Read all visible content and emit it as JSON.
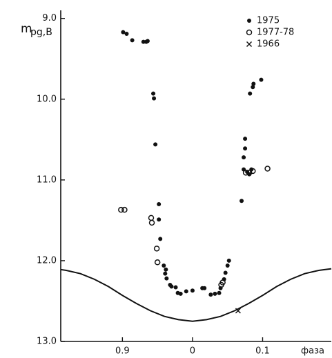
{
  "chart_data": {
    "type": "scatter",
    "ylabel": "m",
    "ylabel_sub": "pg,B",
    "xlabel": "фаза",
    "xlim": [
      0.812,
      1.198
    ],
    "ylim": [
      13.0,
      8.9
    ],
    "xticks": [
      0.9,
      {
        "value": 1.0,
        "label": "0"
      },
      {
        "value": 1.1,
        "label": "0.1"
      }
    ],
    "yticks": [
      {
        "value": 9.0,
        "label": "9.0"
      },
      {
        "value": 10.0,
        "label": "10.0"
      },
      {
        "value": 11.0,
        "label": "11.0"
      },
      {
        "value": 12.0,
        "label": "12.0"
      },
      {
        "value": 13.0,
        "label": "13.0"
      }
    ],
    "series": [
      {
        "name": "1975",
        "marker": "dot",
        "color": "#111",
        "x": [
          0.901,
          0.906,
          0.914,
          0.93,
          0.934,
          0.936,
          0.944,
          0.945,
          0.947,
          0.952,
          0.952,
          0.954,
          0.959,
          0.962,
          0.961,
          0.963,
          0.968,
          0.97,
          0.976,
          0.979,
          0.983,
          0.991,
          1.0,
          1.014,
          1.017,
          1.026,
          1.032,
          1.038,
          1.04,
          1.045,
          1.047,
          1.05,
          1.052,
          1.07,
          1.073,
          1.073,
          1.075,
          1.075,
          1.082,
          1.086,
          1.087,
          1.098,
          1.078,
          1.081,
          1.084
        ],
        "values": [
          9.17,
          9.19,
          9.27,
          9.29,
          9.29,
          9.28,
          9.93,
          9.99,
          10.56,
          11.3,
          11.49,
          11.73,
          12.06,
          12.11,
          12.16,
          12.22,
          12.3,
          12.32,
          12.33,
          12.4,
          12.41,
          12.38,
          12.37,
          12.34,
          12.34,
          12.42,
          12.41,
          12.4,
          12.34,
          12.23,
          12.15,
          12.06,
          12.0,
          11.26,
          10.87,
          10.72,
          10.61,
          10.49,
          9.93,
          9.85,
          9.81,
          9.76,
          10.9,
          10.93,
          10.87
        ]
      },
      {
        "name": "1977-78",
        "marker": "circle",
        "color": "#111",
        "x": [
          0.898,
          0.903,
          0.941,
          0.942,
          0.949,
          0.95,
          1.041,
          1.043,
          1.076,
          1.081,
          1.086,
          1.107
        ],
        "values": [
          11.37,
          11.37,
          11.47,
          11.53,
          11.85,
          12.02,
          12.3,
          12.27,
          10.91,
          10.91,
          10.89,
          10.86
        ]
      },
      {
        "name": "1966",
        "marker": "cross",
        "color": "#111",
        "x": [
          1.065
        ],
        "values": [
          12.62
        ]
      },
      {
        "marker": "line",
        "color": "#111",
        "x": [
          0.812,
          0.82,
          0.84,
          0.86,
          0.88,
          0.9,
          0.92,
          0.94,
          0.96,
          0.98,
          1.0,
          1.02,
          1.04,
          1.06,
          1.08,
          1.1,
          1.12,
          1.14,
          1.16,
          1.18,
          1.198
        ],
        "values": [
          12.11,
          12.12,
          12.16,
          12.23,
          12.32,
          12.43,
          12.53,
          12.62,
          12.69,
          12.73,
          12.75,
          12.73,
          12.69,
          12.62,
          12.53,
          12.43,
          12.32,
          12.23,
          12.16,
          12.12,
          12.1
        ]
      }
    ]
  }
}
